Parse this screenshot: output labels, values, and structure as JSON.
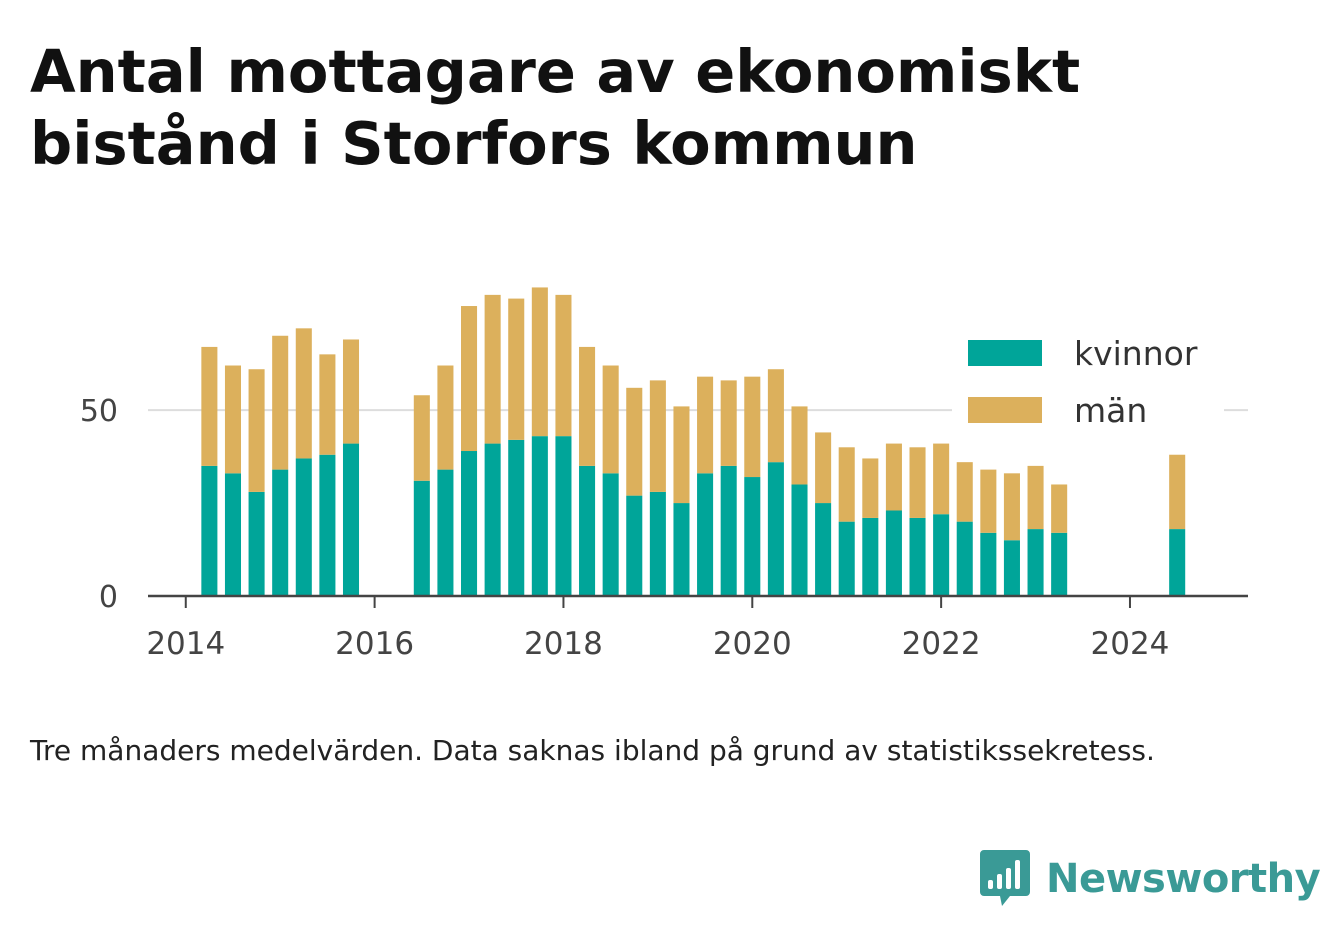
{
  "title": "Antal mottagare av ekonomiskt bistånd i Storfors kommun",
  "footnote": "Tre månaders medelvärden. Data saknas ibland på grund av statistikssekretess.",
  "brand": {
    "name": "Newsworthy",
    "color": "#3a9a96",
    "logo_icon": "bar-chart-speech-bubble-icon"
  },
  "chart_data": {
    "type": "bar",
    "stacked": true,
    "xlim": [
      2013.6,
      2025.25
    ],
    "ylim": [
      0,
      85
    ],
    "x_ticks": [
      2014,
      2016,
      2018,
      2020,
      2022,
      2024
    ],
    "y_ticks": [
      0,
      50
    ],
    "grid": "horizontal, at 50",
    "legend_position": "top-right",
    "x": [
      2014.25,
      2014.5,
      2014.75,
      2015.0,
      2015.25,
      2015.5,
      2015.75,
      2016.5,
      2016.75,
      2017.0,
      2017.25,
      2017.5,
      2017.75,
      2018.0,
      2018.25,
      2018.5,
      2018.75,
      2019.0,
      2019.25,
      2019.5,
      2019.75,
      2020.0,
      2020.25,
      2020.5,
      2020.75,
      2021.0,
      2021.25,
      2021.5,
      2021.75,
      2022.0,
      2022.25,
      2022.5,
      2022.75,
      2023.0,
      2023.25,
      2024.5
    ],
    "series": [
      {
        "name": "kvinnor",
        "color": "#00a599",
        "values": [
          35,
          33,
          28,
          34,
          37,
          38,
          41,
          31,
          34,
          39,
          41,
          42,
          43,
          43,
          35,
          33,
          27,
          28,
          25,
          33,
          35,
          32,
          36,
          30,
          25,
          20,
          21,
          23,
          21,
          22,
          20,
          17,
          15,
          18,
          17,
          18
        ]
      },
      {
        "name": "män",
        "color": "#dcb05c",
        "values": [
          32,
          29,
          33,
          36,
          35,
          27,
          28,
          23,
          28,
          39,
          40,
          38,
          40,
          38,
          32,
          29,
          29,
          30,
          26,
          26,
          23,
          27,
          25,
          21,
          19,
          20,
          16,
          18,
          19,
          19,
          16,
          17,
          18,
          17,
          13,
          20
        ]
      }
    ]
  }
}
